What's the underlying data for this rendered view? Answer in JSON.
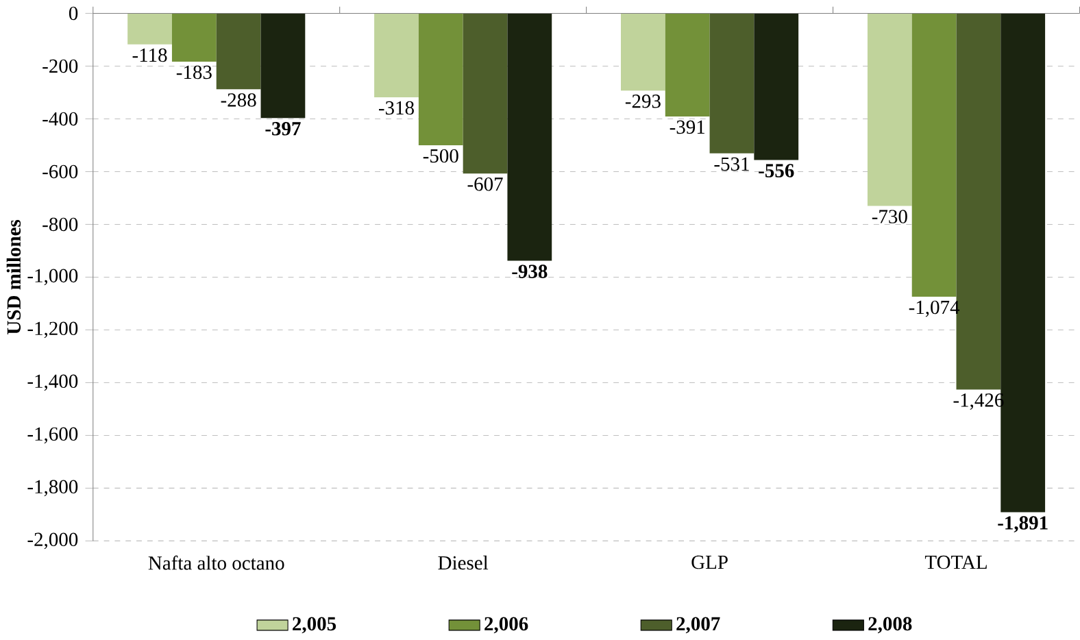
{
  "chart_data": {
    "type": "bar",
    "ylabel": "USD millones",
    "categories": [
      "Nafta alto octano",
      "Diesel",
      "GLP",
      "TOTAL"
    ],
    "series": [
      {
        "name": "2,005",
        "color": "#c0d39b",
        "values": [
          -118,
          -318,
          -293,
          -730
        ],
        "value_labels": [
          "-118",
          "-318",
          "-293",
          "-730"
        ]
      },
      {
        "name": "2,006",
        "color": "#739139",
        "values": [
          -183,
          -500,
          -391,
          -1074
        ],
        "value_labels": [
          "-183",
          "-500",
          "-391",
          "-1,074"
        ]
      },
      {
        "name": "2,007",
        "color": "#4d5e2b",
        "values": [
          -288,
          -607,
          -531,
          -1426
        ],
        "value_labels": [
          "-288",
          "-607",
          "-531",
          "-1,426"
        ]
      },
      {
        "name": "2,008",
        "color": "#1b2410",
        "values": [
          -397,
          -938,
          -556,
          -1891
        ],
        "value_labels": [
          "-397",
          "-938",
          "-556",
          "-1,891"
        ]
      }
    ],
    "ylim": [
      -2000,
      0
    ],
    "yticks": [
      {
        "value": -2000,
        "label": "-2,000"
      },
      {
        "value": -1800,
        "label": "-1,800"
      },
      {
        "value": -1600,
        "label": "-1,600"
      },
      {
        "value": -1400,
        "label": "-1,400"
      },
      {
        "value": -1200,
        "label": "-1,200"
      },
      {
        "value": -1000,
        "label": "-1,000"
      },
      -800,
      -600,
      -400,
      -200,
      0
    ],
    "grid": "y",
    "legend": "bottom"
  }
}
